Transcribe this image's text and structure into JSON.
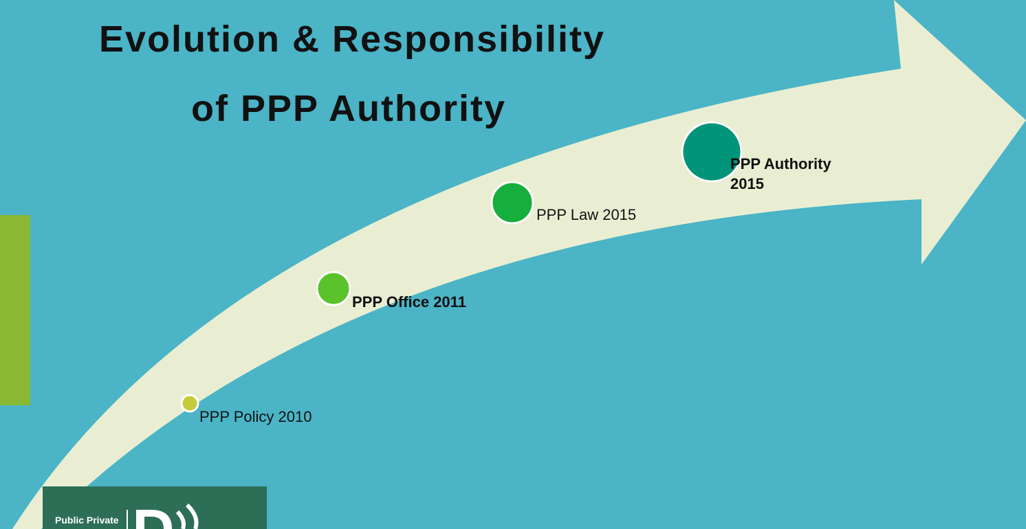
{
  "title": {
    "lines": [
      "Evolution & Responsibility",
      "of PPP Authority"
    ]
  },
  "milestones": [
    {
      "label": "PPP Policy 2010"
    },
    {
      "label": "PPP Office 2011"
    },
    {
      "label": "PPP Law 2015"
    },
    {
      "label": "PPP Authority 2015"
    }
  ],
  "logo": {
    "text": "Public Private"
  }
}
